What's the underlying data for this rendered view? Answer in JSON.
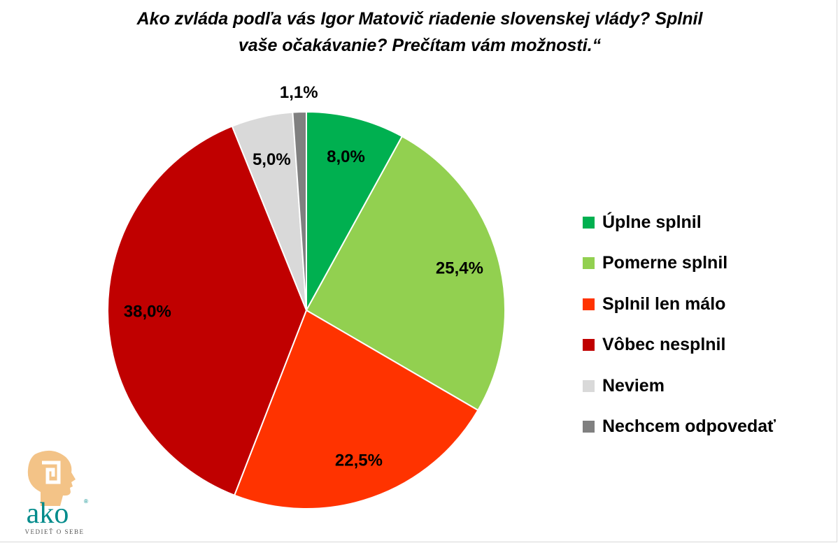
{
  "title": {
    "line1": "Ako zvláda podľa vás Igor Matovič riadenie slovenskej vlády? Splnil",
    "line2": "vaše očakávanie? Prečítam vám možnosti.“"
  },
  "chart_data": {
    "type": "pie",
    "title": "Ako zvláda podľa vás Igor Matovič riadenie slovenskej vlády? Splnil vaše očakávanie? Prečítam vám možnosti.“",
    "categories": [
      "Úplne splnil",
      "Pomerne splnil",
      "Splnil len málo",
      "Vôbec nesplnil",
      "Neviem",
      "Nechcem odpovedať"
    ],
    "values": [
      8.0,
      25.4,
      22.5,
      38.0,
      5.0,
      1.1
    ],
    "labels": [
      "8,0%",
      "25,4%",
      "22,5%",
      "38,0%",
      "5,0%",
      "1,1%"
    ],
    "colors": [
      "#00b050",
      "#92d050",
      "#ff3300",
      "#c00000",
      "#d9d9d9",
      "#808080"
    ],
    "legend_position": "right",
    "start_angle": "12 o'clock",
    "direction": "clockwise"
  },
  "logo": {
    "brand": "ako",
    "tagline": "VEDIEŤ O SEBE",
    "registered": "®",
    "colors": {
      "head": "#f3c387",
      "text": "#008b8b"
    }
  }
}
